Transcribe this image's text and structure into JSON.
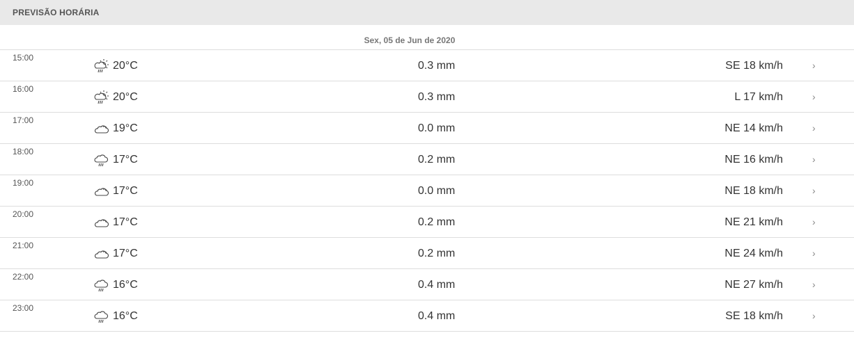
{
  "header": {
    "title": "PREVISÃO HORÁRIA"
  },
  "date_label": "Sex, 05 de Jun de 2020",
  "rows": [
    {
      "time": "15:00",
      "icon": "sun-cloud-rain-icon",
      "temp": "20°C",
      "precip": "0.3 mm",
      "wind": "SE 18 km/h"
    },
    {
      "time": "16:00",
      "icon": "sun-cloud-rain-icon",
      "temp": "20°C",
      "precip": "0.3 mm",
      "wind": "L 17 km/h"
    },
    {
      "time": "17:00",
      "icon": "cloud-icon",
      "temp": "19°C",
      "precip": "0.0 mm",
      "wind": "NE 14 km/h"
    },
    {
      "time": "18:00",
      "icon": "cloud-rain-icon",
      "temp": "17°C",
      "precip": "0.2 mm",
      "wind": "NE 16 km/h"
    },
    {
      "time": "19:00",
      "icon": "cloud-icon",
      "temp": "17°C",
      "precip": "0.0 mm",
      "wind": "NE 18 km/h"
    },
    {
      "time": "20:00",
      "icon": "cloud-icon",
      "temp": "17°C",
      "precip": "0.2 mm",
      "wind": "NE 21 km/h"
    },
    {
      "time": "21:00",
      "icon": "cloud-icon",
      "temp": "17°C",
      "precip": "0.2 mm",
      "wind": "NE 24 km/h"
    },
    {
      "time": "22:00",
      "icon": "cloud-rain-icon",
      "temp": "16°C",
      "precip": "0.4 mm",
      "wind": "NE 27 km/h"
    },
    {
      "time": "23:00",
      "icon": "cloud-rain-icon",
      "temp": "16°C",
      "precip": "0.4 mm",
      "wind": "SE 18 km/h"
    }
  ],
  "chevron": "›"
}
